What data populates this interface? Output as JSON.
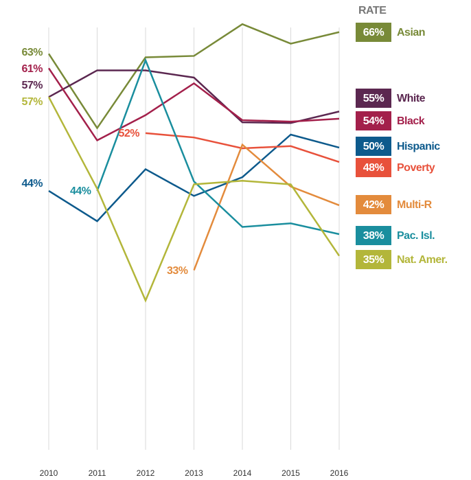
{
  "chart_data": {
    "type": "line",
    "header": "RATE",
    "categories": [
      "2010",
      "2011",
      "2012",
      "2013",
      "2014",
      "2015",
      "2016"
    ],
    "ylim": [
      8.5,
      67.5
    ],
    "grid": true,
    "series": [
      {
        "name": "Asian",
        "color": "#788a38",
        "values": [
          63,
          52.7,
          62.5,
          62.7,
          67.1,
          64.4,
          66
        ],
        "value_labels": [
          "63%",
          null,
          null,
          null,
          null,
          null,
          "66%"
        ]
      },
      {
        "name": "White",
        "color": "#5b2750",
        "values": [
          57,
          60.7,
          60.7,
          59.7,
          53.5,
          53.4,
          55
        ],
        "value_labels": [
          "57%",
          null,
          null,
          null,
          null,
          null,
          "55%"
        ]
      },
      {
        "name": "Black",
        "color": "#a3204b",
        "values": [
          61,
          51,
          54.5,
          58.9,
          53.8,
          53.6,
          54
        ],
        "value_labels": [
          "61%",
          null,
          null,
          null,
          null,
          null,
          "54%"
        ]
      },
      {
        "name": "Hispanic",
        "color": "#0d5a8c",
        "values": [
          44,
          39.8,
          47,
          43.3,
          45.9,
          51.8,
          50
        ],
        "value_labels": [
          "44%",
          null,
          null,
          null,
          null,
          null,
          "50%"
        ]
      },
      {
        "name": "Poverty",
        "color": "#e8513b",
        "values": [
          null,
          null,
          52,
          51.4,
          49.9,
          50.2,
          48
        ],
        "value_labels": [
          null,
          null,
          "52%",
          null,
          null,
          null,
          "48%"
        ]
      },
      {
        "name": "Multi-R",
        "color": "#e38b3c",
        "values": [
          null,
          null,
          null,
          33,
          50.4,
          44.6,
          42
        ],
        "value_labels": [
          null,
          null,
          null,
          "33%",
          null,
          null,
          "42%"
        ]
      },
      {
        "name": "Pac. Isl.",
        "color": "#1a8e9e",
        "values": [
          null,
          44,
          62.1,
          45.3,
          39,
          39.5,
          38
        ],
        "value_labels": [
          null,
          "44%",
          null,
          null,
          null,
          null,
          "38%"
        ]
      },
      {
        "name": "Nat. Amer.",
        "color": "#b3b63a",
        "values": [
          57,
          44.3,
          28.8,
          44.9,
          45.4,
          44.9,
          35
        ],
        "value_labels": [
          "57%",
          null,
          null,
          null,
          null,
          null,
          "35%"
        ]
      }
    ]
  }
}
